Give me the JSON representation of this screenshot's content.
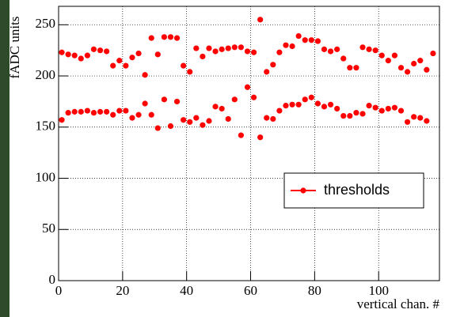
{
  "chart_data": {
    "type": "scatter",
    "x_label": "vertical chan. #",
    "y_label": "fADC units",
    "x": [
      1,
      3,
      5,
      7,
      9,
      11,
      13,
      15,
      17,
      19,
      21,
      23,
      25,
      27,
      29,
      31,
      33,
      35,
      37,
      39,
      41,
      43,
      45,
      47,
      49,
      51,
      53,
      55,
      57,
      59,
      61,
      63,
      65,
      67,
      69,
      71,
      73,
      75,
      77,
      79,
      81,
      83,
      85,
      87,
      89,
      91,
      93,
      95,
      97,
      99,
      101,
      103,
      105,
      107,
      109,
      111,
      113,
      115,
      117,
      1,
      3,
      5,
      7,
      9,
      11,
      13,
      15,
      17,
      19,
      21,
      23,
      25,
      27,
      29,
      31,
      33,
      35,
      37,
      39,
      41,
      43,
      45,
      47,
      49,
      51,
      53,
      55,
      57,
      59,
      61,
      63,
      65,
      67,
      69,
      71,
      73,
      75,
      77,
      79,
      81,
      83,
      85,
      87,
      89,
      91,
      93,
      95,
      97,
      99,
      101,
      103,
      105,
      107,
      109,
      111,
      113,
      115
    ],
    "series": [
      {
        "name": "thresholds",
        "color": "#ff0000",
        "values": [
          223,
          221,
          220,
          217,
          220,
          226,
          225,
          224,
          210,
          215,
          210,
          218,
          222,
          201,
          237,
          221,
          238,
          238,
          237,
          210,
          204,
          227,
          219,
          227,
          224,
          226,
          227,
          228,
          228,
          224,
          223,
          255,
          204,
          211,
          223,
          230,
          229,
          239,
          235,
          235,
          234,
          226,
          224,
          226,
          217,
          208,
          208,
          228,
          226,
          225,
          220,
          215,
          220,
          208,
          204,
          212,
          215,
          206,
          222,
          157,
          164,
          165,
          165,
          166,
          164,
          165,
          165,
          162,
          166,
          166,
          159,
          162,
          173,
          162,
          149,
          177,
          151,
          175,
          157,
          155,
          159,
          152,
          156,
          170,
          168,
          158,
          177,
          142,
          189,
          179,
          140,
          159,
          158,
          166,
          171,
          172,
          172,
          177,
          179,
          173,
          170,
          172,
          168,
          161,
          161,
          164,
          163,
          171,
          169,
          166,
          168,
          169,
          166,
          155,
          160,
          159,
          156
        ]
      }
    ],
    "xlim": [
      0,
      119
    ],
    "ylim": [
      0,
      268
    ],
    "xticks": [
      0,
      20,
      40,
      60,
      80,
      100
    ],
    "yticks": [
      0,
      50,
      100,
      150,
      200,
      250
    ],
    "grid": true,
    "legend": "lower-right"
  }
}
